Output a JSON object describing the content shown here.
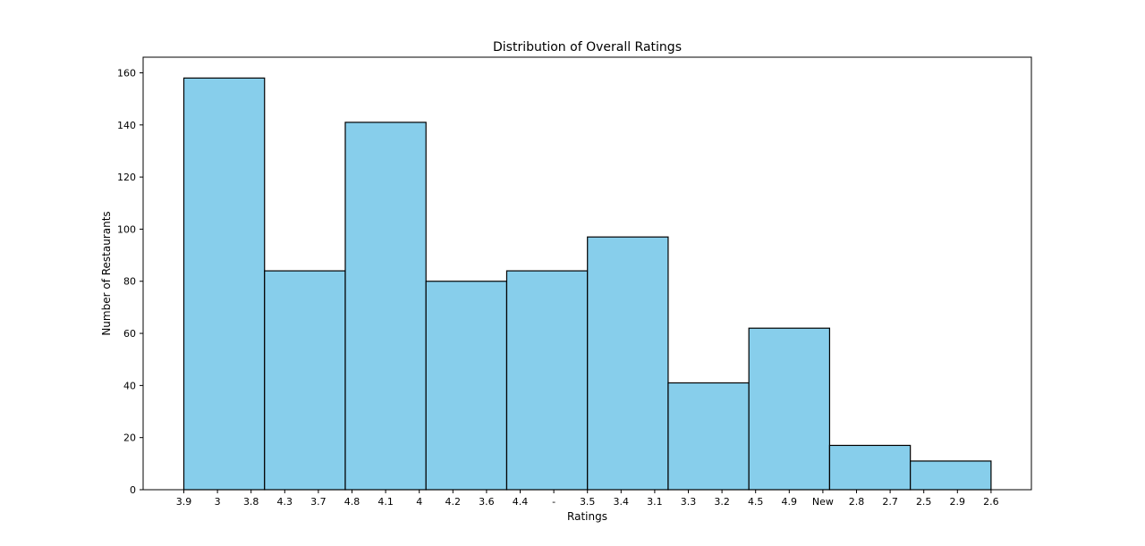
{
  "chart_data": {
    "type": "bar",
    "title": "Distribution of Overall Ratings",
    "xlabel": "Ratings",
    "ylabel": "Number of Restaurants",
    "x_ticks": [
      "3.9",
      "3",
      "3.8",
      "4.3",
      "3.7",
      "4.8",
      "4.1",
      "4",
      "4.2",
      "3.6",
      "4.4",
      "-",
      "3.5",
      "3.4",
      "3.1",
      "3.3",
      "3.2",
      "4.5",
      "4.9",
      "New",
      "2.8",
      "2.7",
      "2.5",
      "2.9",
      "2.6"
    ],
    "bins": [
      {
        "start_tick": 0,
        "end_tick": 2.4,
        "count": 158
      },
      {
        "start_tick": 2.4,
        "end_tick": 4.8,
        "count": 84
      },
      {
        "start_tick": 4.8,
        "end_tick": 7.2,
        "count": 141
      },
      {
        "start_tick": 7.2,
        "end_tick": 9.6,
        "count": 80
      },
      {
        "start_tick": 9.6,
        "end_tick": 12.0,
        "count": 84
      },
      {
        "start_tick": 12.0,
        "end_tick": 14.4,
        "count": 97
      },
      {
        "start_tick": 14.4,
        "end_tick": 16.8,
        "count": 41
      },
      {
        "start_tick": 16.8,
        "end_tick": 19.2,
        "count": 62
      },
      {
        "start_tick": 19.2,
        "end_tick": 21.6,
        "count": 17
      },
      {
        "start_tick": 21.6,
        "end_tick": 24.0,
        "count": 11
      }
    ],
    "ylim": [
      0,
      166
    ],
    "y_ticks": [
      0,
      20,
      40,
      60,
      80,
      100,
      120,
      140,
      160
    ],
    "grid": false,
    "legend": false,
    "bar_color": "#87ceeb",
    "edge_color": "#000000"
  }
}
